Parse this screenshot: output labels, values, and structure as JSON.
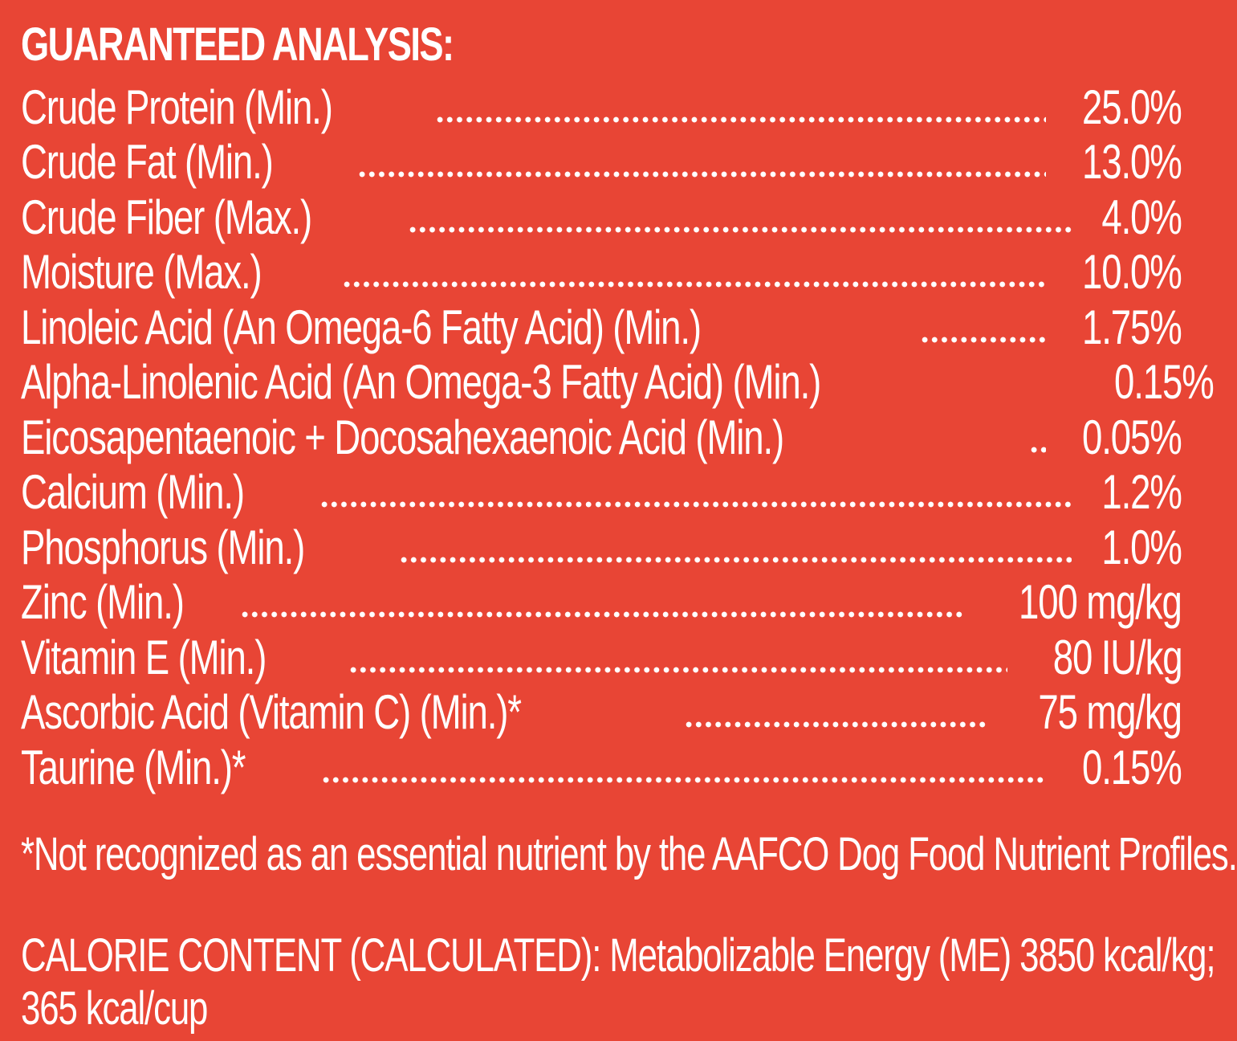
{
  "panel": {
    "background_color": "#E84535",
    "text_color": "#FFFFFF"
  },
  "heading": "GUARANTEED ANALYSIS:",
  "nutrients": [
    {
      "label": "Crude Protein (Min.)",
      "value": "25.0%"
    },
    {
      "label": "Crude Fat (Min.)",
      "value": "13.0%"
    },
    {
      "label": "Crude Fiber (Max.)",
      "value": "4.0%"
    },
    {
      "label": "Moisture (Max.)",
      "value": "10.0%"
    },
    {
      "label": "Linoleic Acid (An Omega-6 Fatty Acid) (Min.)",
      "value": "1.75%"
    },
    {
      "label": "Alpha-Linolenic Acid (An Omega-3 Fatty Acid) (Min.)",
      "value": "0.15%"
    },
    {
      "label": "Eicosapentaenoic + Docosahexaenoic Acid (Min.)",
      "value": "0.05%"
    },
    {
      "label": "Calcium (Min.)",
      "value": "1.2%"
    },
    {
      "label": "Phosphorus (Min.)",
      "value": "1.0%"
    },
    {
      "label": "Zinc (Min.)",
      "value": "100 mg/kg"
    },
    {
      "label": "Vitamin E (Min.)",
      "value": "80 IU/kg"
    },
    {
      "label": "Ascorbic Acid (Vitamin C) (Min.)*",
      "value": "75 mg/kg"
    },
    {
      "label": "Taurine (Min.)*",
      "value": "0.15%"
    }
  ],
  "footnote": "*Not recognized as an essential nutrient by the AAFCO Dog Food Nutrient Profiles.",
  "calorie_content": {
    "line1": "CALORIE CONTENT (CALCULATED): Metabolizable Energy (ME) 3850 kcal/kg;",
    "line2": "365 kcal/cup"
  }
}
